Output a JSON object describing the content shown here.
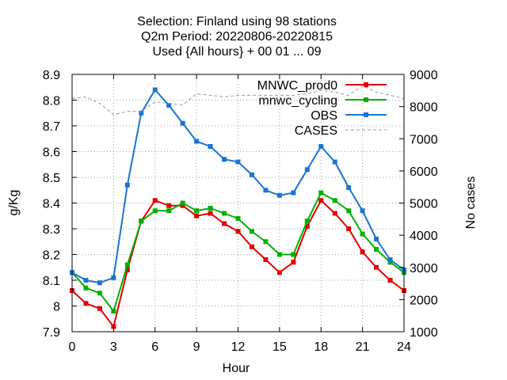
{
  "chart_data": {
    "type": "line",
    "title_lines": [
      "Selection: Finland using    98 stations",
      "Q2m   Period: 20220806-20220815",
      "Used {All hours} + 00 01 ... 09"
    ],
    "xlabel": "Hour",
    "ylabel": "g/Kg",
    "y2label": "No cases",
    "xlim": [
      0,
      24
    ],
    "ylim": [
      7.9,
      8.9
    ],
    "y2lim": [
      1000,
      9000
    ],
    "xticks": [
      "0",
      "3",
      "6",
      "9",
      "12",
      "15",
      "18",
      "21",
      "24"
    ],
    "yticks": [
      "7.9",
      "8",
      "8.1",
      "8.2",
      "8.3",
      "8.4",
      "8.5",
      "8.6",
      "8.7",
      "8.8",
      "8.9"
    ],
    "y2ticks": [
      "1000",
      "2000",
      "3000",
      "4000",
      "5000",
      "6000",
      "7000",
      "8000",
      "9000"
    ],
    "grid": true,
    "legend_position": "top-right",
    "x": [
      0,
      1,
      2,
      3,
      4,
      5,
      6,
      7,
      8,
      9,
      10,
      11,
      12,
      13,
      14,
      15,
      16,
      17,
      18,
      19,
      20,
      21,
      22,
      23,
      24
    ],
    "series": [
      {
        "name": "MNWC_prod0",
        "color": "#e00000",
        "axis": "y",
        "values": [
          8.06,
          8.01,
          7.99,
          7.92,
          8.14,
          8.33,
          8.41,
          8.39,
          8.39,
          8.35,
          8.36,
          8.32,
          8.29,
          8.23,
          8.18,
          8.13,
          8.17,
          8.31,
          8.41,
          8.36,
          8.3,
          8.21,
          8.15,
          8.1,
          8.06
        ]
      },
      {
        "name": "mnwc_cycling",
        "color": "#00b000",
        "axis": "y",
        "values": [
          8.13,
          8.07,
          8.05,
          7.98,
          8.16,
          8.33,
          8.37,
          8.37,
          8.4,
          8.37,
          8.38,
          8.36,
          8.34,
          8.29,
          8.25,
          8.2,
          8.2,
          8.33,
          8.44,
          8.41,
          8.37,
          8.28,
          8.22,
          8.17,
          8.13
        ]
      },
      {
        "name": "OBS",
        "color": "#1a74d4",
        "axis": "y",
        "values": [
          8.13,
          8.1,
          8.09,
          8.11,
          8.47,
          8.75,
          8.84,
          8.78,
          8.71,
          8.64,
          8.62,
          8.57,
          8.56,
          8.51,
          8.45,
          8.43,
          8.44,
          8.53,
          8.62,
          8.56,
          8.46,
          8.37,
          8.26,
          8.18,
          8.14
        ]
      },
      {
        "name": "CASES",
        "color": "#999999",
        "axis": "y2",
        "dashed": true,
        "values": [
          8250,
          8300,
          8100,
          7750,
          7850,
          7850,
          8150,
          8100,
          8050,
          8400,
          8350,
          8300,
          8350,
          8350,
          8350,
          8350,
          8350,
          8400,
          8500,
          8450,
          8350,
          8650,
          8450,
          8350,
          8250
        ]
      }
    ]
  }
}
